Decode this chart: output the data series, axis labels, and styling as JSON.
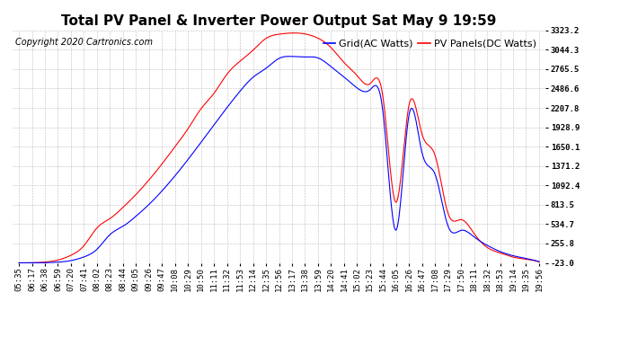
{
  "title": "Total PV Panel & Inverter Power Output Sat May 9 19:59",
  "copyright_text": "Copyright 2020 Cartronics.com",
  "legend_grid": "Grid(AC Watts)",
  "legend_pv": "PV Panels(DC Watts)",
  "grid_color": "blue",
  "pv_color": "red",
  "background_color": "#ffffff",
  "plot_bg_color": "#ffffff",
  "yticks": [
    -23.0,
    255.8,
    534.7,
    813.5,
    1092.4,
    1371.2,
    1650.1,
    1928.9,
    2207.8,
    2486.6,
    2765.5,
    3044.3,
    3323.2
  ],
  "ylim": [
    -23.0,
    3323.2
  ],
  "grid_color_style": "#bbbbbb",
  "line_width": 0.8,
  "title_fontsize": 11,
  "tick_fontsize": 6.5,
  "legend_fontsize": 8,
  "copyright_fontsize": 7,
  "time_labels": [
    "05:35",
    "06:17",
    "06:38",
    "06:59",
    "07:20",
    "07:41",
    "08:02",
    "08:23",
    "08:44",
    "09:05",
    "09:26",
    "09:47",
    "10:08",
    "10:29",
    "10:50",
    "11:11",
    "11:32",
    "11:53",
    "12:14",
    "12:35",
    "12:56",
    "13:17",
    "13:38",
    "13:59",
    "14:20",
    "14:41",
    "15:02",
    "15:23",
    "15:44",
    "16:05",
    "16:26",
    "16:47",
    "17:08",
    "17:29",
    "17:50",
    "18:11",
    "18:32",
    "18:53",
    "19:14",
    "19:35",
    "19:56"
  ]
}
